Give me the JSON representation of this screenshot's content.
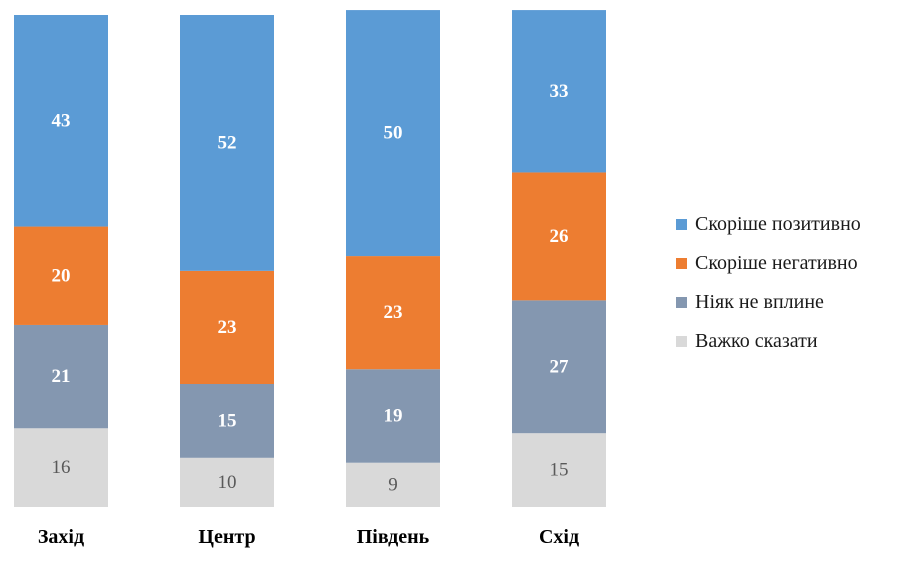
{
  "chart_data": {
    "type": "bar",
    "stacked": true,
    "categories": [
      "Захід",
      "Центр",
      "Південь",
      "Схід"
    ],
    "series": [
      {
        "name": "Скоріше позитивно",
        "color": "#5B9BD5",
        "values": [
          43,
          52,
          50,
          33
        ]
      },
      {
        "name": "Скоріше негативно",
        "color": "#ED7D31",
        "values": [
          20,
          23,
          23,
          26
        ]
      },
      {
        "name": "Ніяк не вплине",
        "color": "#8497B0",
        "values": [
          21,
          15,
          19,
          27
        ]
      },
      {
        "name": "Важко сказати",
        "color": "#D9D9D9",
        "values": [
          16,
          10,
          9,
          15
        ]
      }
    ],
    "ylim": [
      0,
      100
    ],
    "legend_position": "right",
    "grid": false
  }
}
